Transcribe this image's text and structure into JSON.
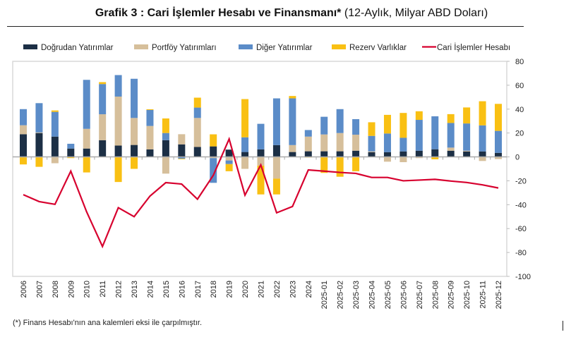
{
  "chart_data": {
    "type": "bar",
    "title": "Grafik 3 : Cari İşlemler Hesabı ve Finansmanı*",
    "subtitle": "(12-Aylık, Milyar ABD Doları)",
    "ylim": [
      -100,
      80
    ],
    "yticks": [
      -100,
      -80,
      -60,
      -40,
      -20,
      0,
      20,
      40,
      60,
      80
    ],
    "y_axis_side": "right",
    "grid": false,
    "legend": "top",
    "stacked": true,
    "categories": [
      "2006",
      "2007",
      "2008",
      "2009",
      "2010",
      "2011",
      "2012",
      "2013",
      "2014",
      "2015",
      "2016",
      "2017",
      "2018",
      "2019",
      "2020",
      "2021",
      "2022",
      "2023",
      "2024",
      "2025-01",
      "2025-02",
      "2025-03",
      "2025-04",
      "2025-05",
      "2025-06",
      "2025-07",
      "2025-08",
      "2025-09",
      "2025-10",
      "2025-11",
      "2025-12"
    ],
    "series": [
      {
        "name": "Doğrudan Yatırımlar",
        "type": "bar",
        "color": "#1c2f45",
        "values": [
          19,
          20,
          17,
          7,
          7,
          14,
          9.5,
          10,
          6.3,
          14,
          10.5,
          8.3,
          8.8,
          6.1,
          4.1,
          6.3,
          9.9,
          4.1,
          4.7,
          4.7,
          4.7,
          5.2,
          4,
          4,
          4.6,
          5.2,
          6.4,
          5.2,
          4.6,
          4.6,
          3.4
        ]
      },
      {
        "name": "Portföy Yatırımları",
        "type": "bar",
        "color": "#d6bf9b",
        "values": [
          7.5,
          0.5,
          -5.3,
          0,
          16.5,
          21.7,
          41,
          22.6,
          19.6,
          -14,
          8.5,
          24.3,
          -1,
          -3,
          -10,
          -7.3,
          -18.2,
          5.8,
          12.3,
          14.1,
          15.3,
          13.4,
          0.6,
          -4,
          -4.4,
          -1,
          0,
          2.6,
          0.6,
          -3.4,
          -1.8
        ]
      },
      {
        "name": "Diğer Yatırımlar",
        "type": "bar",
        "color": "#5b8cc8",
        "values": [
          13.5,
          24.5,
          20.7,
          4,
          41,
          25.3,
          18,
          32.8,
          13.4,
          6,
          -1.5,
          8.7,
          -20.7,
          -3,
          12.3,
          21.4,
          39.1,
          39.1,
          5.5,
          14.8,
          20,
          13,
          13,
          15.6,
          11.4,
          25.8,
          27.6,
          20.6,
          22.8,
          21.8,
          18.4
        ]
      },
      {
        "name": "Rezerv Varlıklar",
        "type": "bar",
        "color": "#f9c013",
        "values": [
          -6.3,
          -8.3,
          1.2,
          -1,
          -13,
          1.6,
          -21,
          -10,
          0.6,
          12.2,
          -0.5,
          8.3,
          10.1,
          -6,
          32,
          -24.1,
          -13.2,
          2,
          -0.5,
          -13.4,
          -16.6,
          -12,
          11.4,
          15.6,
          20.8,
          7.2,
          -2,
          7.4,
          13.4,
          20.2,
          22.6
        ]
      },
      {
        "name": "Cari İşlemler Hesabı",
        "type": "line",
        "color": "#d7002e",
        "values": [
          -31.6,
          -37.4,
          -39.7,
          -11.9,
          -46,
          -75,
          -42.5,
          -50,
          -32.8,
          -21.5,
          -22.7,
          -35.4,
          -15.4,
          15,
          -32,
          -6.7,
          -46.8,
          -41.5,
          -10.9,
          -11.9,
          -13,
          -13.8,
          -17.2,
          -17.2,
          -20,
          -19.4,
          -18.8,
          -20.2,
          -21.4,
          -23.4,
          -26
        ]
      }
    ]
  },
  "footnote": "(*) Finans Hesabı'nın ana kalemleri eksi ile çarpılmıştır."
}
